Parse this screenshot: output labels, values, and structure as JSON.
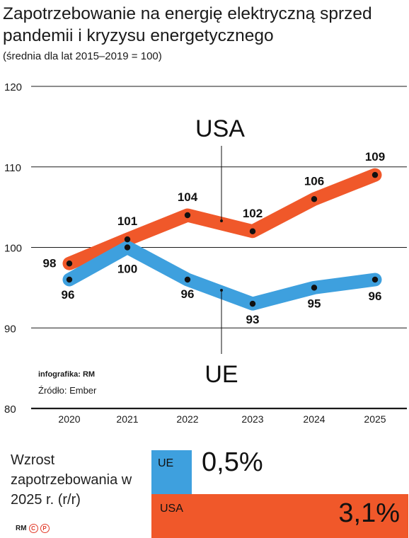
{
  "title": "Zapotrzebowanie na energię elektryczną sprzed pandemii i kryzysu energetycznego",
  "subtitle": "(średnia dla lat 2015–2019 = 100)",
  "credits": {
    "infographic": "infografika: RM",
    "source": "Źródło: Ember"
  },
  "growth": {
    "label": "Wzrost zapotrzebowania w 2025 r. (r/r)",
    "ue_label": "UE",
    "ue_value": "0,5%",
    "usa_label": "USA",
    "usa_value": "3,1%"
  },
  "logo": {
    "text": "RM",
    "c": "C",
    "p": "P"
  },
  "colors": {
    "usa": "#f0582a",
    "ue": "#3ea0de",
    "ue_bar": "#3ea0de",
    "usa_bar": "#f0582a"
  },
  "chart_data": {
    "type": "line",
    "categories": [
      "2020",
      "2021",
      "2022",
      "2023",
      "2024",
      "2025"
    ],
    "y_ticks": [
      "80",
      "90",
      "100",
      "110",
      "120"
    ],
    "ylim": [
      80,
      120
    ],
    "grid": true,
    "series": [
      {
        "name": "USA",
        "values": [
          98,
          101,
          104,
          102,
          106,
          109
        ],
        "labels": [
          "98",
          "101",
          "104",
          "102",
          "106",
          "109"
        ]
      },
      {
        "name": "UE",
        "values": [
          96,
          100,
          96,
          93,
          95,
          96
        ],
        "labels": [
          "96",
          "100",
          "96",
          "93",
          "95",
          "96"
        ]
      }
    ]
  }
}
